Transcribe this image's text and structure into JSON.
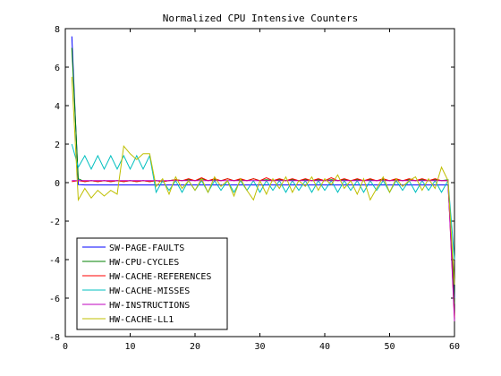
{
  "chart_data": {
    "type": "line",
    "title": "Normalized CPU Intensive Counters",
    "xlabel": "",
    "ylabel": "",
    "xlim": [
      0,
      60
    ],
    "ylim": [
      -8,
      8
    ],
    "xticks": [
      0,
      10,
      20,
      30,
      40,
      50,
      60
    ],
    "yticks": [
      -8,
      -6,
      -4,
      -2,
      0,
      2,
      4,
      6,
      8
    ],
    "grid": false,
    "legend_position": "bottom-left",
    "x": [
      1,
      2,
      3,
      4,
      5,
      6,
      7,
      8,
      9,
      10,
      11,
      12,
      13,
      14,
      15,
      16,
      17,
      18,
      19,
      20,
      21,
      22,
      23,
      24,
      25,
      26,
      27,
      28,
      29,
      30,
      31,
      32,
      33,
      34,
      35,
      36,
      37,
      38,
      39,
      40,
      41,
      42,
      43,
      44,
      45,
      46,
      47,
      48,
      49,
      50,
      51,
      52,
      53,
      54,
      55,
      56,
      57,
      58,
      59,
      60
    ],
    "series": [
      {
        "name": "SW-PAGE-FAULTS",
        "color": "#0000ff",
        "values": [
          7.6,
          -0.1,
          -0.12,
          -0.12,
          -0.12,
          -0.12,
          -0.12,
          -0.12,
          -0.12,
          -0.12,
          -0.12,
          -0.12,
          -0.12,
          -0.12,
          -0.12,
          -0.12,
          -0.12,
          -0.12,
          -0.12,
          -0.12,
          -0.12,
          -0.12,
          -0.12,
          -0.12,
          -0.12,
          -0.12,
          -0.12,
          -0.12,
          -0.12,
          -0.12,
          -0.12,
          -0.12,
          -0.12,
          -0.12,
          -0.12,
          -0.12,
          -0.12,
          -0.12,
          -0.12,
          -0.12,
          -0.12,
          -0.12,
          -0.12,
          -0.12,
          -0.12,
          -0.12,
          -0.12,
          -0.12,
          -0.12,
          -0.12,
          -0.12,
          -0.12,
          -0.12,
          -0.12,
          -0.12,
          -0.12,
          -0.12,
          -0.12,
          -0.12,
          -6.0
        ]
      },
      {
        "name": "HW-CPU-CYCLES",
        "color": "#008000",
        "values": [
          7.0,
          0.2,
          0.05,
          0.1,
          0.05,
          0.1,
          0.05,
          0.1,
          0.05,
          0.1,
          0.05,
          0.1,
          0.05,
          0.1,
          0.05,
          0.1,
          0.15,
          0.1,
          0.15,
          0.1,
          0.2,
          0.1,
          0.15,
          0.1,
          0.2,
          0.1,
          0.15,
          0.1,
          0.2,
          0.1,
          0.15,
          0.1,
          0.15,
          0.1,
          0.15,
          0.1,
          0.15,
          0.1,
          0.15,
          0.1,
          0.15,
          0.1,
          0.15,
          0.1,
          0.15,
          0.1,
          0.15,
          0.1,
          0.15,
          0.1,
          0.15,
          0.1,
          0.15,
          0.1,
          0.15,
          0.1,
          0.15,
          0.1,
          0.15,
          -6.3
        ]
      },
      {
        "name": "HW-CACHE-REFERENCES",
        "color": "#ff0000",
        "values": [
          0.05,
          0.1,
          0.05,
          0.1,
          0.05,
          0.1,
          0.05,
          0.1,
          0.05,
          0.1,
          0.05,
          0.1,
          0.05,
          0.1,
          0.05,
          0.1,
          0.15,
          0.1,
          0.2,
          0.1,
          0.25,
          0.1,
          0.2,
          0.1,
          0.2,
          0.1,
          0.2,
          0.1,
          0.2,
          0.1,
          0.25,
          0.1,
          0.2,
          0.1,
          0.2,
          0.1,
          0.2,
          0.1,
          0.2,
          0.1,
          0.25,
          0.1,
          0.2,
          0.1,
          0.2,
          0.1,
          0.2,
          0.1,
          0.2,
          0.1,
          0.2,
          0.1,
          0.2,
          0.1,
          0.2,
          0.1,
          0.2,
          0.1,
          0.1,
          -7.0
        ]
      },
      {
        "name": "HW-CACHE-MISSES",
        "color": "#00bfbf",
        "values": [
          2.0,
          0.8,
          1.4,
          0.7,
          1.4,
          0.7,
          1.4,
          0.7,
          1.4,
          0.7,
          1.4,
          0.7,
          1.4,
          -0.5,
          0.1,
          -0.4,
          0.1,
          -0.5,
          0.1,
          -0.4,
          0.1,
          -0.5,
          0.1,
          -0.4,
          0.1,
          -0.5,
          0.1,
          -0.4,
          0.1,
          -0.5,
          0.1,
          -0.4,
          0.1,
          -0.5,
          0.1,
          -0.4,
          0.1,
          -0.5,
          0.1,
          -0.4,
          0.1,
          -0.5,
          0.1,
          -0.4,
          0.1,
          -0.5,
          0.1,
          -0.4,
          0.1,
          -0.5,
          0.1,
          -0.4,
          0.1,
          -0.5,
          0.1,
          -0.4,
          0.1,
          -0.5,
          0.1,
          -4.0
        ]
      },
      {
        "name": "HW-INSTRUCTIONS",
        "color": "#bf00bf",
        "values": [
          0.1,
          0.1,
          0.1,
          0.1,
          0.1,
          0.1,
          0.1,
          0.1,
          0.1,
          0.1,
          0.1,
          0.1,
          0.1,
          0.1,
          0.1,
          0.1,
          0.1,
          0.1,
          0.1,
          0.1,
          0.1,
          0.1,
          0.1,
          0.1,
          0.1,
          0.1,
          0.1,
          0.1,
          0.1,
          0.1,
          0.1,
          0.1,
          0.1,
          0.1,
          0.1,
          0.1,
          0.1,
          0.1,
          0.1,
          0.1,
          0.1,
          0.1,
          0.1,
          0.1,
          0.1,
          0.1,
          0.1,
          0.1,
          0.1,
          0.1,
          0.1,
          0.1,
          0.1,
          0.1,
          0.1,
          0.1,
          0.1,
          0.1,
          0.1,
          -7.2
        ]
      },
      {
        "name": "HW-CACHE-LL1",
        "color": "#bfbf00",
        "values": [
          5.5,
          -0.9,
          -0.3,
          -0.8,
          -0.4,
          -0.7,
          -0.4,
          -0.6,
          1.9,
          1.5,
          1.2,
          1.5,
          1.5,
          -0.2,
          0.2,
          -0.6,
          0.3,
          -0.3,
          0.1,
          -0.4,
          0.2,
          -0.5,
          0.3,
          -0.2,
          0.1,
          -0.7,
          0.2,
          -0.4,
          -0.9,
          0.1,
          -0.6,
          0.2,
          -0.3,
          0.3,
          -0.5,
          0.1,
          -0.2,
          0.3,
          -0.4,
          0.2,
          -0.1,
          0.4,
          -0.3,
          0.1,
          -0.6,
          0.2,
          -0.9,
          -0.3,
          0.3,
          -0.5,
          0.2,
          -0.2,
          0.1,
          0.3,
          -0.4,
          0.2,
          -0.3,
          0.8,
          0.1,
          -5.3
        ]
      }
    ]
  }
}
